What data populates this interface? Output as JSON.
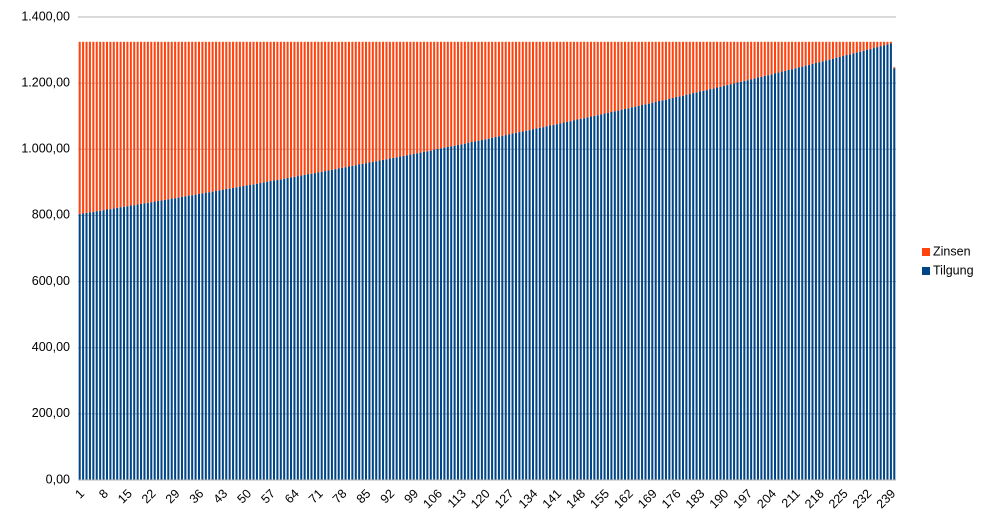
{
  "chart_data": {
    "type": "stacked_bar",
    "categories": [
      1,
      null,
      null,
      null,
      null,
      null,
      null,
      8,
      null,
      null,
      null,
      null,
      null,
      null,
      15,
      null,
      null,
      null,
      null,
      null,
      null,
      22,
      null,
      null,
      null,
      null,
      null,
      null,
      29,
      null,
      null,
      null,
      null,
      null,
      null,
      36,
      null,
      null,
      null,
      null,
      null,
      null,
      43,
      null,
      null,
      null,
      null,
      null,
      null,
      50,
      null,
      null,
      null,
      null,
      null,
      null,
      57,
      null,
      null,
      null,
      null,
      null,
      null,
      64,
      null,
      null,
      null,
      null,
      null,
      null,
      71,
      null,
      null,
      null,
      null,
      null,
      null,
      78,
      null,
      null,
      null,
      null,
      null,
      null,
      85,
      null,
      null,
      null,
      null,
      null,
      null,
      92,
      null,
      null,
      null,
      null,
      null,
      null,
      99,
      null,
      null,
      null,
      null,
      null,
      null,
      106,
      null,
      null,
      null,
      null,
      null,
      null,
      113,
      null,
      null,
      null,
      null,
      null,
      null,
      120,
      null,
      null,
      null,
      null,
      null,
      null,
      127,
      null,
      null,
      null,
      null,
      null,
      null,
      134,
      null,
      null,
      null,
      null,
      null,
      null,
      141,
      null,
      null,
      null,
      null,
      null,
      null,
      148,
      null,
      null,
      null,
      null,
      null,
      null,
      155,
      null,
      null,
      null,
      null,
      null,
      null,
      162,
      null,
      null,
      null,
      null,
      null,
      null,
      169,
      null,
      null,
      null,
      null,
      null,
      null,
      176,
      null,
      null,
      null,
      null,
      null,
      null,
      183,
      null,
      null,
      null,
      null,
      null,
      null,
      190,
      null,
      null,
      null,
      null,
      null,
      null,
      197,
      null,
      null,
      null,
      null,
      null,
      null,
      204,
      null,
      null,
      null,
      null,
      null,
      null,
      211,
      null,
      null,
      null,
      null,
      null,
      null,
      218,
      null,
      null,
      null,
      null,
      null,
      null,
      225,
      null,
      null,
      null,
      null,
      null,
      null,
      232,
      null,
      null,
      null,
      null,
      null,
      null,
      239,
      null
    ],
    "series": [
      {
        "name": "Tilgung",
        "color": "#004586",
        "values": [
          804,
          806,
          808,
          809,
          811,
          813,
          814,
          816,
          818,
          819,
          821,
          823,
          825,
          826,
          828,
          830,
          831,
          833,
          835,
          837,
          838,
          840,
          842,
          844,
          845,
          847,
          849,
          851,
          852,
          854,
          856,
          858,
          860,
          861,
          863,
          865,
          867,
          869,
          870,
          872,
          874,
          876,
          878,
          880,
          881,
          883,
          885,
          887,
          889,
          891,
          892,
          894,
          896,
          898,
          900,
          902,
          904,
          906,
          907,
          909,
          911,
          913,
          915,
          917,
          919,
          921,
          923,
          925,
          926,
          928,
          930,
          932,
          934,
          936,
          938,
          940,
          942,
          944,
          946,
          948,
          950,
          952,
          954,
          956,
          958,
          960,
          962,
          964,
          966,
          968,
          970,
          972,
          974,
          976,
          978,
          980,
          982,
          984,
          986,
          988,
          990,
          992,
          994,
          996,
          999,
          1001,
          1003,
          1005,
          1007,
          1009,
          1011,
          1013,
          1015,
          1017,
          1020,
          1022,
          1024,
          1026,
          1028,
          1030,
          1032,
          1035,
          1037,
          1039,
          1041,
          1043,
          1045,
          1048,
          1050,
          1052,
          1054,
          1056,
          1058,
          1061,
          1063,
          1065,
          1067,
          1070,
          1072,
          1074,
          1076,
          1078,
          1081,
          1083,
          1085,
          1088,
          1090,
          1092,
          1094,
          1097,
          1099,
          1101,
          1103,
          1106,
          1108,
          1110,
          1113,
          1115,
          1117,
          1120,
          1122,
          1124,
          1127,
          1129,
          1131,
          1134,
          1136,
          1138,
          1141,
          1143,
          1146,
          1148,
          1150,
          1153,
          1155,
          1158,
          1160,
          1162,
          1165,
          1167,
          1170,
          1172,
          1175,
          1177,
          1179,
          1182,
          1184,
          1187,
          1189,
          1192,
          1194,
          1197,
          1199,
          1202,
          1204,
          1207,
          1209,
          1212,
          1214,
          1217,
          1219,
          1222,
          1224,
          1227,
          1230,
          1232,
          1235,
          1237,
          1240,
          1242,
          1245,
          1248,
          1250,
          1253,
          1255,
          1258,
          1261,
          1263,
          1266,
          1269,
          1271,
          1274,
          1277,
          1279,
          1282,
          1285,
          1287,
          1290,
          1293,
          1295,
          1298,
          1301,
          1303,
          1306,
          1309,
          1312,
          1314,
          1317,
          1320,
          1245
        ]
      },
      {
        "name": "Zinsen",
        "color": "#ff420e",
        "values": [
          521,
          519,
          517,
          516,
          514,
          512,
          511,
          509,
          507,
          506,
          504,
          502,
          500,
          499,
          497,
          495,
          494,
          492,
          490,
          488,
          487,
          485,
          483,
          481,
          480,
          478,
          476,
          474,
          473,
          471,
          469,
          467,
          465,
          464,
          462,
          460,
          458,
          456,
          455,
          453,
          451,
          449,
          447,
          445,
          444,
          442,
          440,
          438,
          436,
          434,
          433,
          431,
          429,
          427,
          425,
          423,
          421,
          419,
          418,
          416,
          414,
          412,
          410,
          408,
          406,
          404,
          402,
          400,
          399,
          397,
          395,
          393,
          391,
          389,
          387,
          385,
          383,
          381,
          379,
          377,
          375,
          373,
          371,
          369,
          367,
          365,
          363,
          361,
          359,
          357,
          355,
          353,
          351,
          349,
          347,
          345,
          343,
          341,
          339,
          337,
          335,
          333,
          331,
          329,
          326,
          324,
          322,
          320,
          318,
          316,
          314,
          312,
          310,
          308,
          305,
          303,
          301,
          299,
          297,
          295,
          293,
          290,
          288,
          286,
          284,
          282,
          280,
          277,
          275,
          273,
          271,
          269,
          267,
          264,
          262,
          260,
          258,
          255,
          253,
          251,
          249,
          247,
          244,
          242,
          240,
          237,
          235,
          233,
          231,
          228,
          226,
          224,
          222,
          219,
          217,
          215,
          212,
          210,
          208,
          205,
          203,
          201,
          198,
          196,
          194,
          191,
          189,
          187,
          184,
          182,
          179,
          177,
          175,
          172,
          170,
          167,
          165,
          163,
          160,
          158,
          155,
          153,
          150,
          148,
          146,
          143,
          141,
          138,
          136,
          133,
          131,
          128,
          126,
          123,
          121,
          118,
          116,
          113,
          111,
          108,
          106,
          103,
          101,
          98,
          95,
          93,
          90,
          88,
          85,
          83,
          80,
          77,
          75,
          72,
          70,
          67,
          64,
          62,
          59,
          56,
          54,
          51,
          48,
          46,
          43,
          40,
          38,
          35,
          32,
          30,
          27,
          24,
          22,
          19,
          16,
          13,
          11,
          8,
          5,
          3
        ]
      }
    ],
    "ylim": [
      0,
      1400
    ],
    "yticks": [
      {
        "value": 0,
        "label": "0,00"
      },
      {
        "value": 200,
        "label": "200,00"
      },
      {
        "value": 400,
        "label": "400,00"
      },
      {
        "value": 600,
        "label": "600,00"
      },
      {
        "value": 800,
        "label": "800,00"
      },
      {
        "value": 1000,
        "label": "1.000,00"
      },
      {
        "value": 1200,
        "label": "1.200,00"
      },
      {
        "value": 1400,
        "label": "1.400,00"
      }
    ],
    "grid": true,
    "legend": "right"
  }
}
